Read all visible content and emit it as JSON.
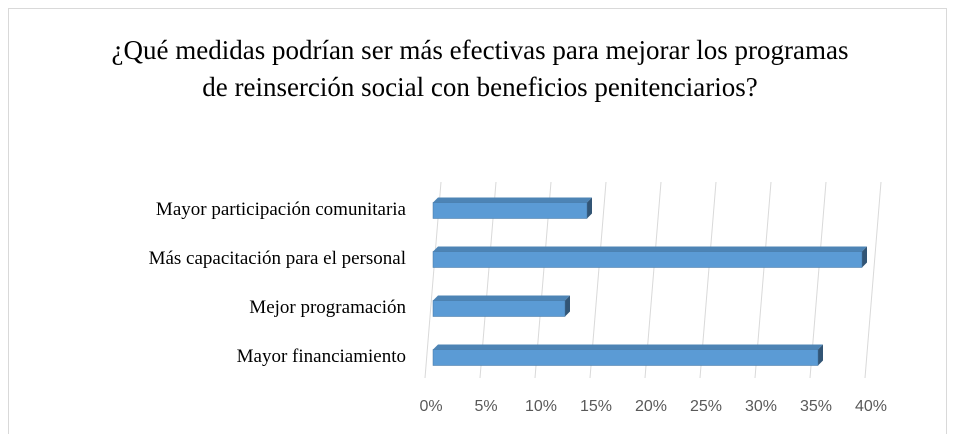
{
  "chart_data": {
    "type": "bar",
    "orientation": "horizontal",
    "title": "¿Qué medidas podrían ser más efectivas para mejorar los programas de reinserción social con beneficios penitenciarios?",
    "categories": [
      "Mayor participación comunitaria",
      "Más capacitación para el personal",
      "Mejor programación",
      "Mayor financiamiento"
    ],
    "values": [
      14,
      39,
      12,
      35
    ],
    "color": "#5b9bd5",
    "xlim": [
      0,
      40
    ],
    "xticks": [
      {
        "value": 0,
        "label": "0%"
      },
      {
        "value": 5,
        "label": "5%"
      },
      {
        "value": 10,
        "label": "10%"
      },
      {
        "value": 15,
        "label": "15%"
      },
      {
        "value": 20,
        "label": "20%"
      },
      {
        "value": 25,
        "label": "25%"
      },
      {
        "value": 30,
        "label": "30%"
      },
      {
        "value": 35,
        "label": "35%"
      },
      {
        "value": 40,
        "label": "40%"
      }
    ],
    "grid": true
  }
}
